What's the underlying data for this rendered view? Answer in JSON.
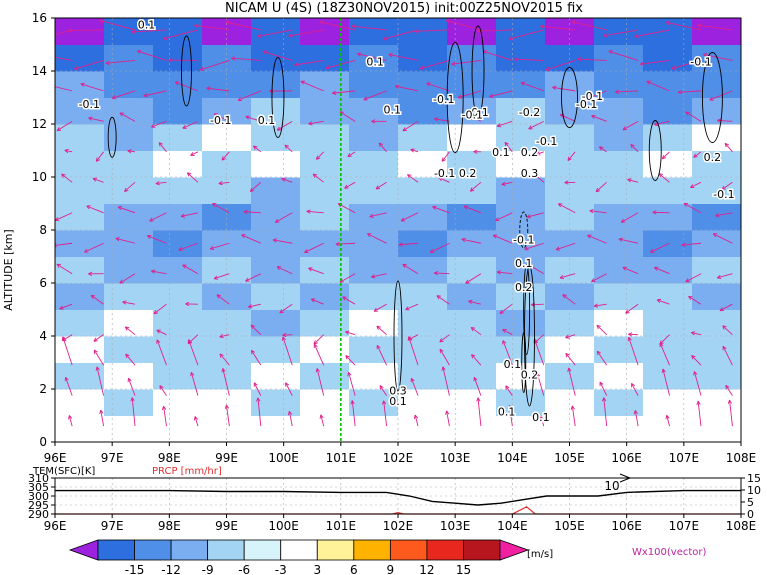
{
  "title": "NICAM  U  (4S)  (18Z30NOV2015)  init:00Z25NOV2015  fix",
  "main": {
    "ylabel": "ALTITUDE [km]",
    "x_ticks": [
      "96E",
      "97E",
      "98E",
      "99E",
      "100E",
      "101E",
      "102E",
      "103E",
      "104E",
      "105E",
      "106E",
      "107E",
      "108E"
    ],
    "y_ticks": [
      "0",
      "2",
      "4",
      "6",
      "8",
      "10",
      "12",
      "14",
      "16"
    ],
    "contour_labels": [
      "0.1",
      "-0.1",
      "-0.1",
      "0.1",
      "0.1",
      "-0.1",
      "0.1",
      "-0.1",
      "-0.1",
      "-0.1",
      "-0.2",
      "-0.1",
      "-0.1",
      "-0.1",
      "-0.1",
      "-0.1 0.2",
      "0.3",
      "0.1",
      "0.2",
      "0.2",
      "-0.1",
      "0.1",
      "0.2",
      "0.3",
      "0.1",
      "0.1",
      "0.2",
      "0.1",
      "0.1"
    ]
  },
  "sub": {
    "left_label": "TEM(SFC)[K]",
    "right_label": "PRCP [mm/hr]",
    "left_ticks": [
      "310",
      "305",
      "300",
      "295",
      "290"
    ],
    "right_ticks": [
      "15",
      "10",
      "5",
      "0"
    ],
    "x_ticks": [
      "96E",
      "97E",
      "98E",
      "99E",
      "100E",
      "101E",
      "102E",
      "103E",
      "104E",
      "105E",
      "106E",
      "107E",
      "108E"
    ],
    "annotation": "10"
  },
  "colorbar": {
    "labels": [
      "-15",
      "-12",
      "-9",
      "-6",
      "-3",
      "3",
      "6",
      "9",
      "12",
      "15"
    ],
    "unit": "[m/s]",
    "colors": [
      "#9d22e0",
      "#2e6fe0",
      "#4f8fe8",
      "#7aaef0",
      "#a4d4f4",
      "#d8f4fb",
      "#ffffff",
      "#fff299",
      "#ffb300",
      "#ff5a1e",
      "#e8281e",
      "#b8161e",
      "#f020a0"
    ]
  },
  "vector_label": "Wx100(vector)",
  "chart_data": {
    "type": "heatmap",
    "title": "NICAM  U  (4S)  (18Z30NOV2015)  init:00Z25NOV2015  fix",
    "x_range": [
      96,
      108
    ],
    "y_range": [
      0,
      16
    ],
    "ylabel": "ALTITUDE [km]",
    "marker_longitude": 101,
    "u_profile_ms": [
      {
        "z": 0,
        "u": 0
      },
      {
        "z": 1,
        "u": -2
      },
      {
        "z": 2,
        "u": -3
      },
      {
        "z": 3,
        "u": -4
      },
      {
        "z": 4,
        "u": -4
      },
      {
        "z": 5,
        "u": -5
      },
      {
        "z": 6,
        "u": -6
      },
      {
        "z": 7,
        "u": -7
      },
      {
        "z": 8,
        "u": -9
      },
      {
        "z": 9,
        "u": -6
      },
      {
        "z": 10,
        "u": -4
      },
      {
        "z": 11,
        "u": -3
      },
      {
        "z": 12,
        "u": -6
      },
      {
        "z": 13,
        "u": -9
      },
      {
        "z": 14,
        "u": -11
      },
      {
        "z": 15,
        "u": -14
      },
      {
        "z": 16,
        "u": -15
      }
    ],
    "surface_temperature": {
      "label": "TEM(SFC)[K]",
      "x": [
        96,
        97,
        98,
        99,
        100,
        101,
        101.8,
        102.2,
        102.6,
        103,
        103.4,
        103.8,
        104.2,
        104.6,
        105,
        105.5,
        106,
        107,
        108
      ],
      "y": [
        303,
        303,
        303,
        302.5,
        302.5,
        302,
        302,
        300,
        297,
        296,
        295,
        296,
        298,
        300,
        300,
        300,
        302,
        303,
        303
      ]
    },
    "precipitation": {
      "label": "PRCP [mm/hr]",
      "x": [
        96,
        101,
        101.9,
        102,
        102.1,
        103,
        104,
        104.25,
        104.4,
        105,
        108
      ],
      "y": [
        0,
        0,
        0,
        0.6,
        0,
        0,
        0,
        3,
        0,
        0,
        0
      ]
    },
    "colorbar_levels_ms": [
      -15,
      -12,
      -9,
      -6,
      -3,
      3,
      6,
      9,
      12,
      15
    ]
  }
}
